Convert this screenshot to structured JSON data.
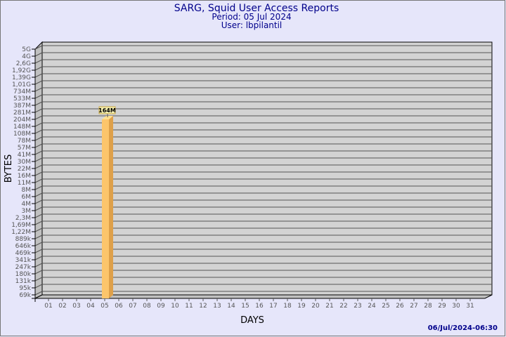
{
  "chart_data": {
    "type": "bar",
    "title": "SARG, Squid User Access Reports",
    "subtitle_period": "Period: 05 Jul 2024",
    "subtitle_user": "User: lbpilantil",
    "xlabel": "DAYS",
    "ylabel": "BYTES",
    "y_scale": "log",
    "grid": true,
    "y_tick_labels": [
      "5G",
      "4G",
      "2,6G",
      "1,92G",
      "1,39G",
      "1,01G",
      "734M",
      "533M",
      "387M",
      "281M",
      "204M",
      "148M",
      "108M",
      "78M",
      "57M",
      "41M",
      "30M",
      "22M",
      "16M",
      "11M",
      "8M",
      "6M",
      "4M",
      "3M",
      "2,3M",
      "1,69M",
      "1,22M",
      "889k",
      "646k",
      "469k",
      "341k",
      "247k",
      "180k",
      "131k",
      "95k",
      "69k"
    ],
    "categories": [
      "01",
      "02",
      "03",
      "04",
      "05",
      "06",
      "07",
      "08",
      "09",
      "10",
      "11",
      "12",
      "13",
      "14",
      "15",
      "16",
      "17",
      "18",
      "19",
      "20",
      "21",
      "22",
      "23",
      "24",
      "25",
      "26",
      "27",
      "28",
      "29",
      "30",
      "31"
    ],
    "bars": [
      {
        "day": "05",
        "value": "164M",
        "label": "164M"
      }
    ],
    "colors": {
      "background": "#e6e6fa",
      "plot": "#d3d3d3",
      "bar_front": "#fcc56b",
      "bar_side": "#dea04a",
      "title": "#00008b"
    }
  },
  "footer": {
    "timestamp": "06/Jul/2024-06:30"
  }
}
